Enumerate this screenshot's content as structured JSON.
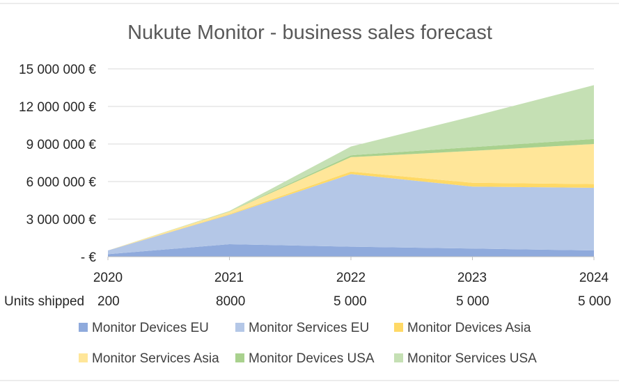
{
  "chart_data": {
    "type": "area",
    "stacked": true,
    "title": "Nukute Monitor - business sales forecast",
    "xlabel": "",
    "ylabel": "",
    "categories": [
      "2020",
      "2021",
      "2022",
      "2023",
      "2024"
    ],
    "ylim": [
      0,
      15000000
    ],
    "yticks": [
      0,
      3000000,
      6000000,
      9000000,
      12000000,
      15000000
    ],
    "ytick_labels": [
      "- €",
      "3 000 000 €",
      "6 000 000 €",
      "9 000 000 €",
      "12 000 000 €",
      "15 000 000 €"
    ],
    "grid": true,
    "legend_position": "bottom",
    "series": [
      {
        "name": "Monitor Devices EU",
        "color": "#8faadc",
        "values": [
          200000,
          1000000,
          800000,
          650000,
          500000
        ]
      },
      {
        "name": "Monitor Services EU",
        "color": "#b4c7e7",
        "values": [
          300000,
          2350000,
          5800000,
          4950000,
          5000000
        ]
      },
      {
        "name": "Monitor Devices Asia",
        "color": "#ffd966",
        "values": [
          0,
          50000,
          200000,
          300000,
          300000
        ]
      },
      {
        "name": "Monitor Services Asia",
        "color": "#ffe699",
        "values": [
          0,
          200000,
          1150000,
          2550000,
          3200000
        ]
      },
      {
        "name": "Monitor Devices USA",
        "color": "#a9d18e",
        "values": [
          0,
          20000,
          150000,
          300000,
          400000
        ]
      },
      {
        "name": "Monitor Services USA",
        "color": "#c5e0b4",
        "values": [
          0,
          30000,
          700000,
          2450000,
          4300000
        ]
      }
    ],
    "units_shipped": {
      "label": "Units shipped",
      "values": [
        "200",
        "8000",
        "5 000",
        "5 000",
        "5 000"
      ]
    }
  }
}
